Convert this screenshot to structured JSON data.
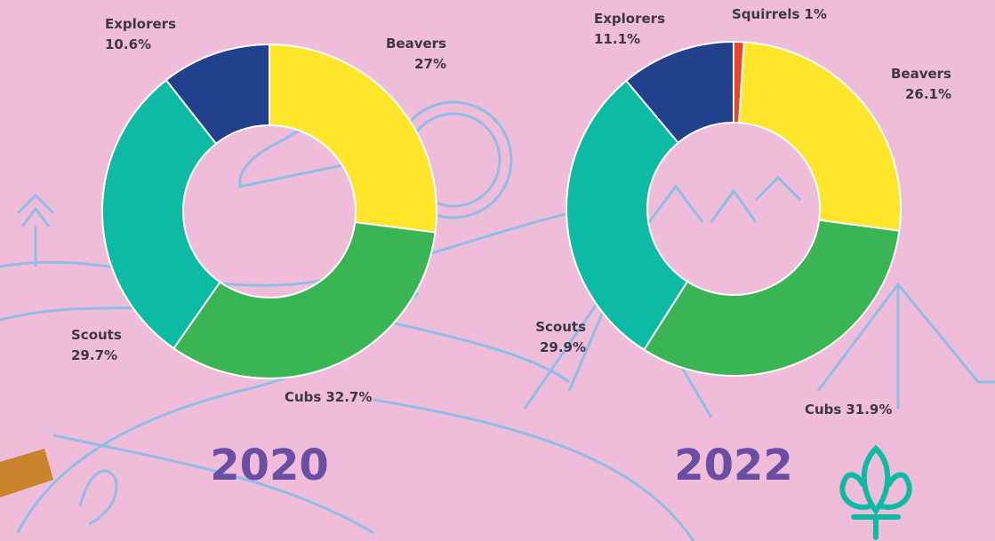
{
  "chart_data": [
    {
      "type": "pie",
      "title": "2020",
      "categories": [
        "Beavers",
        "Cubs",
        "Scouts",
        "Explorers"
      ],
      "values": [
        27,
        32.7,
        29.7,
        10.6
      ],
      "value_labels": [
        "27%",
        "32.7%",
        "29.7%",
        "10.6%"
      ],
      "colors": [
        "#ffe62b",
        "#39b554",
        "#0dba a4",
        "#22418d"
      ]
    },
    {
      "type": "pie",
      "title": "2022",
      "categories": [
        "Squirrels",
        "Beavers",
        "Cubs",
        "Scouts",
        "Explorers"
      ],
      "values": [
        1,
        26.1,
        31.9,
        29.9,
        11.1
      ],
      "value_labels": [
        "1%",
        "26.1%",
        "31.9%",
        "29.9%",
        "11.1%"
      ],
      "colors": [
        "#e8452c",
        "#ffe62b",
        "#39b554",
        "#0dbaa4",
        "#22418d"
      ]
    }
  ]
}
